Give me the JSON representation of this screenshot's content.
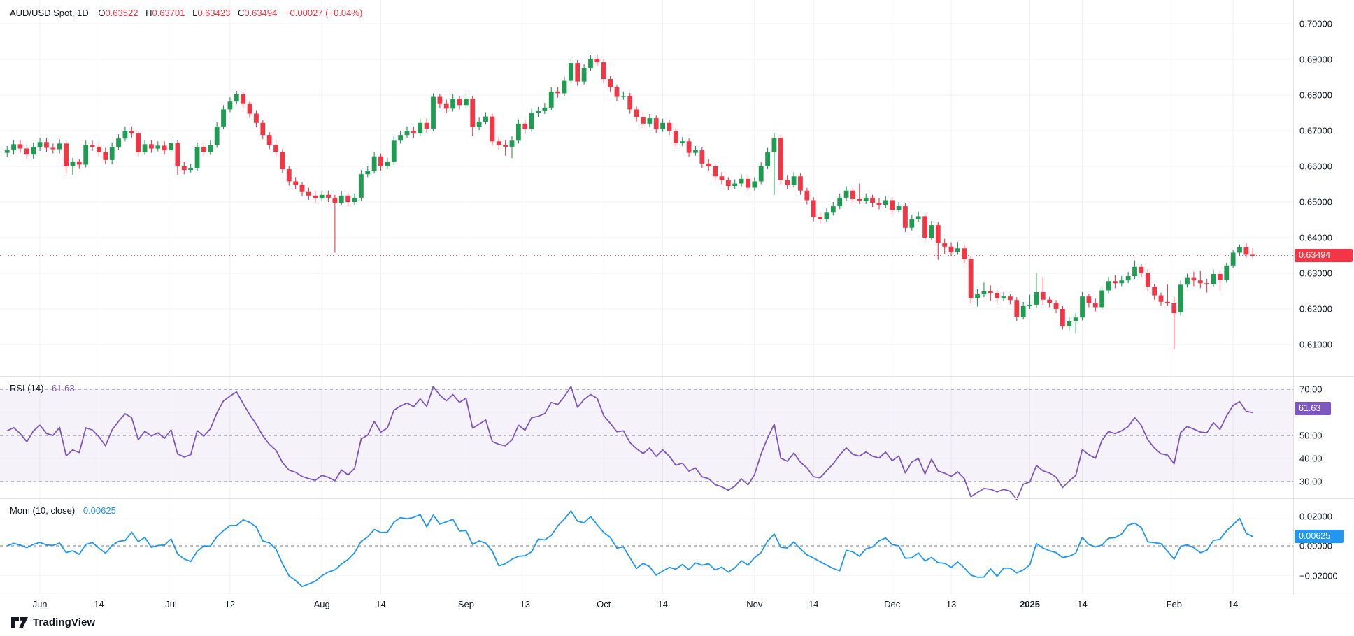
{
  "header": {
    "title": "AUD/USD Spot, 1D",
    "o_label": "O",
    "o": "0.63522",
    "h_label": "H",
    "h": "0.63701",
    "l_label": "L",
    "l": "0.63423",
    "c_label": "C",
    "c": "0.63494",
    "change": "−0.00027 (−0.04%)"
  },
  "watermark": "TradingView",
  "colors": {
    "up": "#1e9c51",
    "down": "#f23645",
    "rsi_line": "#7e57c2",
    "mom_line": "#2196f3",
    "rsi_band_fill": "rgba(126,87,194,0.08)",
    "dashed_level": "#787b86",
    "grid": "#f0f1f3",
    "separator": "#e0e3eb",
    "text": "#131722",
    "price_badge": "#f23645",
    "rsi_badge": "#7e57c2",
    "mom_badge": "#2196f3",
    "last_price_line": "#f23645"
  },
  "price_axis": {
    "ticks": [
      {
        "label": "0.70000",
        "value": 0.7
      },
      {
        "label": "0.69000",
        "value": 0.69
      },
      {
        "label": "0.68000",
        "value": 0.68
      },
      {
        "label": "0.67000",
        "value": 0.67
      },
      {
        "label": "0.66000",
        "value": 0.66
      },
      {
        "label": "0.65000",
        "value": 0.65
      },
      {
        "label": "0.64000",
        "value": 0.64
      },
      {
        "label": "0.63000",
        "value": 0.63
      },
      {
        "label": "0.62000",
        "value": 0.62
      },
      {
        "label": "0.61000",
        "value": 0.61
      }
    ],
    "last_price_label": "0.63494",
    "last_price_value": 0.63494
  },
  "rsi": {
    "label": "RSI (14)",
    "value_label": "61.63",
    "value": 61.63,
    "period": 14,
    "band": [
      30,
      70
    ],
    "levels": [
      {
        "label": "70.00",
        "value": 70,
        "dashed": true
      },
      {
        "label": "50.00",
        "value": 50,
        "dashed": true
      },
      {
        "label": "40.00",
        "value": 40,
        "dashed": false
      },
      {
        "label": "30.00",
        "value": 30,
        "dashed": true
      }
    ]
  },
  "mom": {
    "label": "Mom (10, close)",
    "value_label": "0.00625",
    "value": 0.00625,
    "period": 10,
    "levels": [
      {
        "label": "0.02000",
        "value": 0.02,
        "dashed": false
      },
      {
        "label": "0.00000",
        "value": 0.0,
        "dashed": true
      },
      {
        "label": "−0.02000",
        "value": -0.02,
        "dashed": false
      }
    ]
  },
  "time_axis": {
    "ticks": [
      {
        "label": "Jun",
        "index": 5
      },
      {
        "label": "14",
        "index": 14
      },
      {
        "label": "Jul",
        "index": 25
      },
      {
        "label": "12",
        "index": 34
      },
      {
        "label": "Aug",
        "index": 48
      },
      {
        "label": "14",
        "index": 57
      },
      {
        "label": "Sep",
        "index": 70
      },
      {
        "label": "13",
        "index": 79
      },
      {
        "label": "Oct",
        "index": 91
      },
      {
        "label": "14",
        "index": 100
      },
      {
        "label": "Nov",
        "index": 114
      },
      {
        "label": "14",
        "index": 123
      },
      {
        "label": "Dec",
        "index": 135
      },
      {
        "label": "13",
        "index": 144
      },
      {
        "label": "2025",
        "index": 156,
        "bold": true
      },
      {
        "label": "14",
        "index": 164
      },
      {
        "label": "Feb",
        "index": 178
      },
      {
        "label": "14",
        "index": 187
      }
    ]
  },
  "chart_data": {
    "type": "candlestick",
    "title": "AUD/USD Spot, 1D",
    "xlabel": "",
    "ylabel": "",
    "ylim": [
      0.601,
      0.7067
    ],
    "price_tick_step": 0.01,
    "grid": true,
    "indicators": [
      {
        "type": "rsi",
        "period": 14,
        "last": 61.63,
        "band": [
          30,
          70
        ],
        "pane": "middle"
      },
      {
        "type": "momentum",
        "period": 10,
        "source": "close",
        "last": 0.00625,
        "pane": "bottom"
      }
    ],
    "ohlc_format": [
      "open",
      "high",
      "low",
      "close"
    ],
    "candles": [
      [
        0.6638,
        0.6657,
        0.6626,
        0.6645
      ],
      [
        0.6645,
        0.6674,
        0.6633,
        0.6662
      ],
      [
        0.6662,
        0.6674,
        0.6638,
        0.665
      ],
      [
        0.665,
        0.6662,
        0.6621,
        0.6633
      ],
      [
        0.6633,
        0.6667,
        0.6621,
        0.6655
      ],
      [
        0.6655,
        0.668,
        0.6643,
        0.6668
      ],
      [
        0.6668,
        0.668,
        0.664,
        0.6652
      ],
      [
        0.6652,
        0.6664,
        0.6636,
        0.6648
      ],
      [
        0.6648,
        0.6676,
        0.6636,
        0.6664
      ],
      [
        0.6664,
        0.6672,
        0.6578,
        0.66
      ],
      [
        0.66,
        0.6624,
        0.6576,
        0.6612
      ],
      [
        0.6612,
        0.662,
        0.6593,
        0.6605
      ],
      [
        0.6605,
        0.6672,
        0.6597,
        0.666
      ],
      [
        0.666,
        0.6672,
        0.6643,
        0.6655
      ],
      [
        0.6655,
        0.6667,
        0.6628,
        0.664
      ],
      [
        0.664,
        0.6652,
        0.6606,
        0.6618
      ],
      [
        0.6618,
        0.6667,
        0.6606,
        0.6655
      ],
      [
        0.6655,
        0.669,
        0.6647,
        0.6678
      ],
      [
        0.6678,
        0.6712,
        0.667,
        0.67
      ],
      [
        0.67,
        0.6712,
        0.668,
        0.6692
      ],
      [
        0.6692,
        0.67,
        0.6628,
        0.664
      ],
      [
        0.664,
        0.6674,
        0.6632,
        0.6662
      ],
      [
        0.6662,
        0.6674,
        0.6638,
        0.665
      ],
      [
        0.665,
        0.667,
        0.6642,
        0.6658
      ],
      [
        0.6658,
        0.667,
        0.6633,
        0.6645
      ],
      [
        0.6645,
        0.6677,
        0.6637,
        0.6665
      ],
      [
        0.6665,
        0.6673,
        0.6576,
        0.66
      ],
      [
        0.66,
        0.6612,
        0.6578,
        0.659
      ],
      [
        0.659,
        0.6607,
        0.6583,
        0.6595
      ],
      [
        0.6595,
        0.6667,
        0.6587,
        0.6655
      ],
      [
        0.6655,
        0.6667,
        0.6628,
        0.664
      ],
      [
        0.664,
        0.6672,
        0.6632,
        0.666
      ],
      [
        0.666,
        0.6724,
        0.6652,
        0.6712
      ],
      [
        0.6712,
        0.6772,
        0.6704,
        0.676
      ],
      [
        0.676,
        0.6794,
        0.6752,
        0.6782
      ],
      [
        0.6782,
        0.6812,
        0.6774,
        0.6802
      ],
      [
        0.6802,
        0.681,
        0.6763,
        0.6775
      ],
      [
        0.6775,
        0.6783,
        0.6736,
        0.6748
      ],
      [
        0.6748,
        0.6756,
        0.671,
        0.6722
      ],
      [
        0.6722,
        0.673,
        0.6676,
        0.6688
      ],
      [
        0.6688,
        0.6696,
        0.6648,
        0.666
      ],
      [
        0.666,
        0.6672,
        0.6628,
        0.664
      ],
      [
        0.664,
        0.6648,
        0.658,
        0.6592
      ],
      [
        0.6592,
        0.66,
        0.6546,
        0.6558
      ],
      [
        0.6558,
        0.657,
        0.6536,
        0.6548
      ],
      [
        0.6548,
        0.6556,
        0.6516,
        0.6528
      ],
      [
        0.6528,
        0.654,
        0.6506,
        0.6518
      ],
      [
        0.6518,
        0.653,
        0.6498,
        0.651
      ],
      [
        0.651,
        0.6532,
        0.6502,
        0.652
      ],
      [
        0.652,
        0.6532,
        0.65,
        0.6512
      ],
      [
        0.6512,
        0.652,
        0.6358,
        0.6498
      ],
      [
        0.6498,
        0.653,
        0.649,
        0.6518
      ],
      [
        0.6518,
        0.6526,
        0.6488,
        0.65
      ],
      [
        0.65,
        0.6524,
        0.6492,
        0.6512
      ],
      [
        0.6512,
        0.659,
        0.6504,
        0.6578
      ],
      [
        0.6578,
        0.66,
        0.657,
        0.6588
      ],
      [
        0.6588,
        0.664,
        0.658,
        0.6628
      ],
      [
        0.6628,
        0.6636,
        0.6588,
        0.66
      ],
      [
        0.66,
        0.6624,
        0.6592,
        0.6612
      ],
      [
        0.6612,
        0.6684,
        0.6604,
        0.6672
      ],
      [
        0.6672,
        0.67,
        0.6664,
        0.6688
      ],
      [
        0.6688,
        0.6712,
        0.668,
        0.67
      ],
      [
        0.67,
        0.6712,
        0.668,
        0.6692
      ],
      [
        0.6692,
        0.6734,
        0.6684,
        0.6722
      ],
      [
        0.6722,
        0.6734,
        0.6694,
        0.6706
      ],
      [
        0.6706,
        0.6805,
        0.6698,
        0.6795
      ],
      [
        0.6795,
        0.6803,
        0.6763,
        0.6775
      ],
      [
        0.6775,
        0.6787,
        0.675,
        0.6762
      ],
      [
        0.6762,
        0.6802,
        0.6754,
        0.679
      ],
      [
        0.679,
        0.6798,
        0.676,
        0.6772
      ],
      [
        0.6772,
        0.6802,
        0.6764,
        0.679
      ],
      [
        0.679,
        0.6798,
        0.6685,
        0.671
      ],
      [
        0.671,
        0.6737,
        0.6702,
        0.6725
      ],
      [
        0.6725,
        0.6752,
        0.6717,
        0.674
      ],
      [
        0.674,
        0.6748,
        0.6658,
        0.667
      ],
      [
        0.667,
        0.6682,
        0.6648,
        0.666
      ],
      [
        0.666,
        0.6672,
        0.663,
        0.6655
      ],
      [
        0.6655,
        0.6684,
        0.6623,
        0.6672
      ],
      [
        0.6672,
        0.6732,
        0.6664,
        0.672
      ],
      [
        0.672,
        0.6732,
        0.6693,
        0.6705
      ],
      [
        0.6705,
        0.6762,
        0.6697,
        0.675
      ],
      [
        0.675,
        0.6767,
        0.6738,
        0.6755
      ],
      [
        0.6755,
        0.6777,
        0.6747,
        0.6765
      ],
      [
        0.6765,
        0.6822,
        0.6757,
        0.681
      ],
      [
        0.681,
        0.6822,
        0.6793,
        0.6805
      ],
      [
        0.6805,
        0.6852,
        0.6797,
        0.684
      ],
      [
        0.684,
        0.6902,
        0.6832,
        0.689
      ],
      [
        0.689,
        0.6898,
        0.6826,
        0.6838
      ],
      [
        0.6838,
        0.6887,
        0.683,
        0.6875
      ],
      [
        0.6875,
        0.6912,
        0.6867,
        0.6902
      ],
      [
        0.6902,
        0.6914,
        0.688,
        0.6892
      ],
      [
        0.6892,
        0.69,
        0.6833,
        0.6845
      ],
      [
        0.6845,
        0.6853,
        0.681,
        0.6822
      ],
      [
        0.6822,
        0.683,
        0.6783,
        0.6795
      ],
      [
        0.6795,
        0.681,
        0.6787,
        0.6798
      ],
      [
        0.6798,
        0.6806,
        0.6748,
        0.676
      ],
      [
        0.676,
        0.6768,
        0.6726,
        0.6738
      ],
      [
        0.6738,
        0.675,
        0.6708,
        0.672
      ],
      [
        0.672,
        0.6747,
        0.6712,
        0.6735
      ],
      [
        0.6735,
        0.6743,
        0.6693,
        0.6705
      ],
      [
        0.6705,
        0.6734,
        0.6697,
        0.6722
      ],
      [
        0.6722,
        0.673,
        0.6688,
        0.67
      ],
      [
        0.67,
        0.6708,
        0.6653,
        0.6665
      ],
      [
        0.6665,
        0.6682,
        0.6657,
        0.667
      ],
      [
        0.667,
        0.6678,
        0.6626,
        0.6638
      ],
      [
        0.6638,
        0.6657,
        0.663,
        0.6645
      ],
      [
        0.6645,
        0.6653,
        0.6596,
        0.6608
      ],
      [
        0.6608,
        0.662,
        0.6588,
        0.66
      ],
      [
        0.66,
        0.6608,
        0.656,
        0.6572
      ],
      [
        0.6572,
        0.6584,
        0.655,
        0.6562
      ],
      [
        0.6562,
        0.657,
        0.6533,
        0.6545
      ],
      [
        0.6545,
        0.6564,
        0.6537,
        0.6552
      ],
      [
        0.6552,
        0.6577,
        0.6544,
        0.6565
      ],
      [
        0.6565,
        0.6573,
        0.6528,
        0.654
      ],
      [
        0.654,
        0.657,
        0.6532,
        0.6558
      ],
      [
        0.6558,
        0.6612,
        0.655,
        0.66
      ],
      [
        0.66,
        0.6652,
        0.6592,
        0.664
      ],
      [
        0.664,
        0.6692,
        0.652,
        0.668
      ],
      [
        0.668,
        0.6688,
        0.655,
        0.6562
      ],
      [
        0.6562,
        0.6574,
        0.6536,
        0.6548
      ],
      [
        0.6548,
        0.6584,
        0.654,
        0.6572
      ],
      [
        0.6572,
        0.658,
        0.652,
        0.6532
      ],
      [
        0.6532,
        0.654,
        0.6493,
        0.6505
      ],
      [
        0.6505,
        0.6513,
        0.6446,
        0.6458
      ],
      [
        0.6458,
        0.647,
        0.644,
        0.6452
      ],
      [
        0.6452,
        0.6482,
        0.6444,
        0.647
      ],
      [
        0.647,
        0.65,
        0.6462,
        0.6488
      ],
      [
        0.6488,
        0.6524,
        0.648,
        0.6512
      ],
      [
        0.6512,
        0.6544,
        0.6504,
        0.6532
      ],
      [
        0.6532,
        0.654,
        0.6496,
        0.6508
      ],
      [
        0.6508,
        0.6552,
        0.6494,
        0.6502
      ],
      [
        0.6502,
        0.6524,
        0.6494,
        0.6512
      ],
      [
        0.6512,
        0.652,
        0.6486,
        0.6498
      ],
      [
        0.6498,
        0.651,
        0.648,
        0.6492
      ],
      [
        0.6492,
        0.6517,
        0.6484,
        0.6505
      ],
      [
        0.6505,
        0.6513,
        0.6466,
        0.6478
      ],
      [
        0.6478,
        0.65,
        0.647,
        0.6488
      ],
      [
        0.6488,
        0.6496,
        0.6416,
        0.6428
      ],
      [
        0.6428,
        0.6464,
        0.642,
        0.6452
      ],
      [
        0.6452,
        0.6472,
        0.6444,
        0.646
      ],
      [
        0.646,
        0.6468,
        0.6388,
        0.64
      ],
      [
        0.64,
        0.6447,
        0.6392,
        0.6435
      ],
      [
        0.6435,
        0.6443,
        0.6338,
        0.6385
      ],
      [
        0.6385,
        0.6397,
        0.6355,
        0.6375
      ],
      [
        0.6375,
        0.6387,
        0.6348,
        0.636
      ],
      [
        0.636,
        0.6388,
        0.6352,
        0.637
      ],
      [
        0.637,
        0.6378,
        0.6328,
        0.634
      ],
      [
        0.634,
        0.6348,
        0.6215,
        0.6231
      ],
      [
        0.6231,
        0.6255,
        0.6207,
        0.6241
      ],
      [
        0.6241,
        0.6274,
        0.6233,
        0.625
      ],
      [
        0.625,
        0.6266,
        0.6222,
        0.6245
      ],
      [
        0.6245,
        0.6253,
        0.6218,
        0.623
      ],
      [
        0.623,
        0.6247,
        0.6222,
        0.6235
      ],
      [
        0.6235,
        0.6243,
        0.6213,
        0.6225
      ],
      [
        0.6225,
        0.6233,
        0.6166,
        0.6178
      ],
      [
        0.6178,
        0.622,
        0.617,
        0.6208
      ],
      [
        0.6208,
        0.624,
        0.62,
        0.6212
      ],
      [
        0.6212,
        0.6301,
        0.6204,
        0.6247
      ],
      [
        0.6247,
        0.629,
        0.621,
        0.6226
      ],
      [
        0.6226,
        0.6234,
        0.6205,
        0.6217
      ],
      [
        0.6217,
        0.6225,
        0.6188,
        0.62
      ],
      [
        0.62,
        0.6208,
        0.6142,
        0.6152
      ],
      [
        0.6152,
        0.6177,
        0.614,
        0.6165
      ],
      [
        0.6165,
        0.6188,
        0.6131,
        0.6176
      ],
      [
        0.6176,
        0.6247,
        0.6168,
        0.6235
      ],
      [
        0.6235,
        0.6243,
        0.6205,
        0.6217
      ],
      [
        0.6217,
        0.6229,
        0.6193,
        0.6205
      ],
      [
        0.6205,
        0.6264,
        0.6197,
        0.6252
      ],
      [
        0.6252,
        0.629,
        0.6244,
        0.6278
      ],
      [
        0.6278,
        0.6294,
        0.6258,
        0.6272
      ],
      [
        0.6272,
        0.6292,
        0.6264,
        0.628
      ],
      [
        0.628,
        0.6304,
        0.6272,
        0.6292
      ],
      [
        0.6292,
        0.6336,
        0.6284,
        0.6318
      ],
      [
        0.6318,
        0.6326,
        0.6288,
        0.63
      ],
      [
        0.63,
        0.6308,
        0.625,
        0.6262
      ],
      [
        0.6262,
        0.627,
        0.6226,
        0.6238
      ],
      [
        0.6238,
        0.6246,
        0.6208,
        0.622
      ],
      [
        0.622,
        0.6268,
        0.6208,
        0.6216
      ],
      [
        0.6216,
        0.6233,
        0.6088,
        0.6188
      ],
      [
        0.619,
        0.628,
        0.6182,
        0.6268
      ],
      [
        0.6268,
        0.6299,
        0.626,
        0.6287
      ],
      [
        0.6287,
        0.6304,
        0.6264,
        0.628
      ],
      [
        0.628,
        0.6306,
        0.6258,
        0.6272
      ],
      [
        0.6272,
        0.6284,
        0.6246,
        0.627
      ],
      [
        0.627,
        0.631,
        0.6262,
        0.6298
      ],
      [
        0.6298,
        0.6306,
        0.625,
        0.6282
      ],
      [
        0.6282,
        0.633,
        0.6274,
        0.6322
      ],
      [
        0.6322,
        0.6366,
        0.6314,
        0.6358
      ],
      [
        0.6358,
        0.6381,
        0.635,
        0.6373
      ],
      [
        0.6373,
        0.6385,
        0.6344,
        0.6352
      ],
      [
        0.63522,
        0.63701,
        0.63423,
        0.63494
      ]
    ]
  }
}
